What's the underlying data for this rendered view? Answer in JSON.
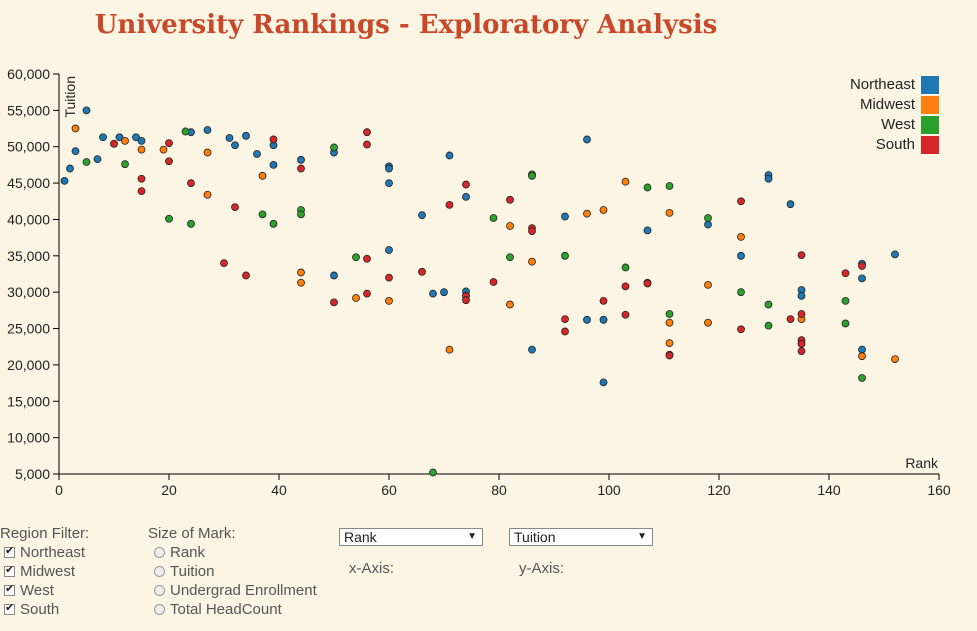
{
  "page": {
    "title": "University Rankings - Exploratory Analysis"
  },
  "chart_data": {
    "type": "scatter",
    "xlabel": "Rank",
    "ylabel": "Tuition",
    "xlim": [
      0,
      160
    ],
    "ylim": [
      5000,
      60000
    ],
    "x_ticks": [
      "0",
      "20",
      "40",
      "60",
      "80",
      "100",
      "120",
      "140",
      "160"
    ],
    "y_ticks": [
      "5,000",
      "10,000",
      "15,000",
      "20,000",
      "25,000",
      "30,000",
      "35,000",
      "40,000",
      "45,000",
      "50,000",
      "55,000",
      "60,000"
    ],
    "grid": false,
    "legend_position": "top-right",
    "series": [
      {
        "name": "Northeast",
        "color": "#1f77b4",
        "points": [
          [
            1,
            45300
          ],
          [
            2,
            47000
          ],
          [
            3,
            49400
          ],
          [
            5,
            55000
          ],
          [
            7,
            48300
          ],
          [
            8,
            51300
          ],
          [
            11,
            51300
          ],
          [
            14,
            51300
          ],
          [
            15,
            50800
          ],
          [
            24,
            52000
          ],
          [
            27,
            52300
          ],
          [
            31,
            51200
          ],
          [
            32,
            50200
          ],
          [
            34,
            51500
          ],
          [
            36,
            49000
          ],
          [
            39,
            50200
          ],
          [
            39,
            47500
          ],
          [
            44,
            48200
          ],
          [
            50,
            49200
          ],
          [
            50,
            32300
          ],
          [
            60,
            47300
          ],
          [
            60,
            47000
          ],
          [
            60,
            45000
          ],
          [
            60,
            35800
          ],
          [
            66,
            40600
          ],
          [
            68,
            29800
          ],
          [
            70,
            30000
          ],
          [
            71,
            48800
          ],
          [
            74,
            43100
          ],
          [
            74,
            30100
          ],
          [
            86,
            22100
          ],
          [
            92,
            40400
          ],
          [
            96,
            51000
          ],
          [
            96,
            26200
          ],
          [
            99,
            26200
          ],
          [
            99,
            17600
          ],
          [
            107,
            38500
          ],
          [
            118,
            39300
          ],
          [
            124,
            35000
          ],
          [
            129,
            46100
          ],
          [
            129,
            45600
          ],
          [
            133,
            42100
          ],
          [
            135,
            30300
          ],
          [
            135,
            29500
          ],
          [
            146,
            33900
          ],
          [
            146,
            31900
          ],
          [
            146,
            22100
          ],
          [
            152,
            35200
          ]
        ]
      },
      {
        "name": "Midwest",
        "color": "#ff7f0e",
        "points": [
          [
            3,
            52500
          ],
          [
            12,
            50800
          ],
          [
            15,
            49600
          ],
          [
            19,
            49600
          ],
          [
            27,
            49200
          ],
          [
            27,
            43400
          ],
          [
            37,
            46000
          ],
          [
            44,
            32700
          ],
          [
            44,
            31300
          ],
          [
            54,
            29200
          ],
          [
            60,
            28800
          ],
          [
            71,
            22100
          ],
          [
            82,
            39100
          ],
          [
            82,
            28300
          ],
          [
            86,
            34200
          ],
          [
            96,
            40800
          ],
          [
            99,
            41300
          ],
          [
            103,
            45200
          ],
          [
            111,
            40900
          ],
          [
            111,
            25800
          ],
          [
            111,
            23000
          ],
          [
            118,
            25800
          ],
          [
            118,
            31000
          ],
          [
            124,
            37600
          ],
          [
            135,
            26300
          ],
          [
            146,
            21200
          ],
          [
            152,
            20800
          ]
        ]
      },
      {
        "name": "West",
        "color": "#2ca02c",
        "points": [
          [
            5,
            47900
          ],
          [
            12,
            47600
          ],
          [
            20,
            40100
          ],
          [
            23,
            52100
          ],
          [
            24,
            39400
          ],
          [
            37,
            40700
          ],
          [
            39,
            39400
          ],
          [
            44,
            41300
          ],
          [
            44,
            40700
          ],
          [
            50,
            49900
          ],
          [
            54,
            34800
          ],
          [
            68,
            5200
          ],
          [
            79,
            40200
          ],
          [
            82,
            34800
          ],
          [
            86,
            46200
          ],
          [
            86,
            46000
          ],
          [
            92,
            35000
          ],
          [
            103,
            33400
          ],
          [
            107,
            44400
          ],
          [
            107,
            31300
          ],
          [
            111,
            44600
          ],
          [
            111,
            27000
          ],
          [
            118,
            40200
          ],
          [
            124,
            30000
          ],
          [
            129,
            28300
          ],
          [
            129,
            25400
          ],
          [
            143,
            28800
          ],
          [
            143,
            25700
          ],
          [
            146,
            18200
          ]
        ]
      },
      {
        "name": "South",
        "color": "#d62728",
        "points": [
          [
            10,
            50400
          ],
          [
            15,
            45600
          ],
          [
            15,
            43900
          ],
          [
            20,
            50500
          ],
          [
            20,
            48000
          ],
          [
            24,
            45000
          ],
          [
            30,
            34000
          ],
          [
            32,
            41700
          ],
          [
            34,
            32300
          ],
          [
            39,
            51000
          ],
          [
            44,
            47000
          ],
          [
            50,
            28600
          ],
          [
            56,
            52000
          ],
          [
            56,
            50300
          ],
          [
            56,
            34600
          ],
          [
            56,
            29800
          ],
          [
            60,
            32000
          ],
          [
            66,
            32800
          ],
          [
            71,
            42000
          ],
          [
            74,
            44800
          ],
          [
            74,
            29500
          ],
          [
            74,
            28900
          ],
          [
            79,
            31400
          ],
          [
            82,
            42700
          ],
          [
            86,
            38800
          ],
          [
            86,
            38400
          ],
          [
            92,
            26300
          ],
          [
            92,
            24600
          ],
          [
            99,
            28800
          ],
          [
            103,
            30800
          ],
          [
            103,
            26900
          ],
          [
            107,
            31200
          ],
          [
            111,
            21400
          ],
          [
            111,
            21300
          ],
          [
            124,
            42500
          ],
          [
            124,
            24900
          ],
          [
            133,
            26300
          ],
          [
            135,
            35100
          ],
          [
            135,
            27000
          ],
          [
            135,
            23400
          ],
          [
            135,
            22900
          ],
          [
            135,
            21900
          ],
          [
            143,
            32600
          ],
          [
            146,
            33600
          ]
        ]
      }
    ]
  },
  "legend": {
    "items": [
      {
        "label": "Northeast",
        "color": "#1f77b4"
      },
      {
        "label": "Midwest",
        "color": "#ff7f0e"
      },
      {
        "label": "West",
        "color": "#2ca02c"
      },
      {
        "label": "South",
        "color": "#d62728"
      }
    ]
  },
  "region_filter": {
    "title": "Region Filter:",
    "options": [
      {
        "label": "Northeast",
        "checked": true
      },
      {
        "label": "Midwest",
        "checked": true
      },
      {
        "label": "West",
        "checked": true
      },
      {
        "label": "South",
        "checked": true
      }
    ]
  },
  "size_of_mark": {
    "title": "Size of Mark:",
    "options": [
      "Rank",
      "Tuition",
      "Undergrad Enrollment",
      "Total HeadCount"
    ]
  },
  "x_axis_select": {
    "value": "Rank",
    "caption": "x-Axis:"
  },
  "y_axis_select": {
    "value": "Tuition",
    "caption": "y-Axis:"
  }
}
